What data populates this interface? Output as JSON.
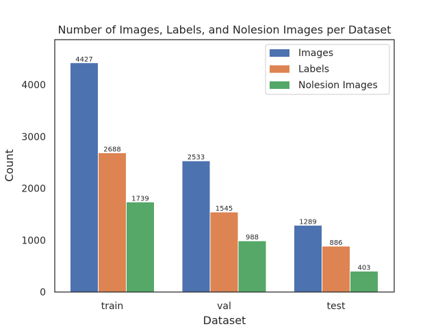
{
  "chart_data": {
    "type": "bar",
    "title": "Number of Images, Labels, and Nolesion Images per Dataset",
    "xlabel": "Dataset",
    "ylabel": "Count",
    "categories": [
      "train",
      "val",
      "test"
    ],
    "series": [
      {
        "name": "Images",
        "values": [
          4427,
          2533,
          1289
        ],
        "color": "#4c72b0"
      },
      {
        "name": "Labels",
        "values": [
          2688,
          1545,
          886
        ],
        "color": "#dd8452"
      },
      {
        "name": "Nolesion Images",
        "values": [
          1739,
          988,
          403
        ],
        "color": "#55a868"
      }
    ],
    "ylim": [
      0,
      4873
    ],
    "yticks": [
      0,
      1000,
      2000,
      3000,
      4000
    ],
    "grid": false,
    "legend": "top-right",
    "show_value_labels": true
  }
}
